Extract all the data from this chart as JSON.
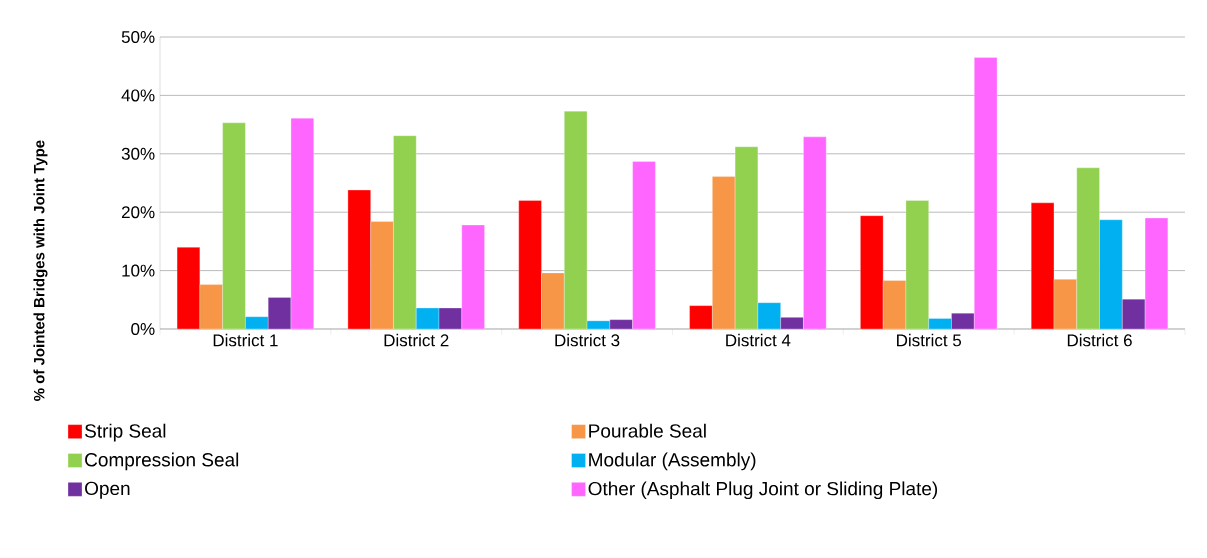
{
  "chart_data": {
    "type": "bar",
    "ylabel": "% of Jointed Bridges with Joint Type",
    "categories": [
      "District 1",
      "District 2",
      "District 3",
      "District 4",
      "District 5",
      "District 6"
    ],
    "series": [
      {
        "name": "Strip Seal",
        "color": "#ff0000",
        "values": [
          14.0,
          23.8,
          22.0,
          4.0,
          19.4,
          21.6
        ]
      },
      {
        "name": "Pourable Seal",
        "color": "#f79646",
        "values": [
          7.6,
          18.4,
          9.6,
          26.1,
          8.3,
          8.5
        ]
      },
      {
        "name": "Compression Seal",
        "color": "#92d050",
        "values": [
          35.3,
          33.1,
          37.3,
          31.2,
          22.0,
          27.6
        ]
      },
      {
        "name": "Modular (Assembly)",
        "color": "#00b0f0",
        "values": [
          2.1,
          3.6,
          1.4,
          4.5,
          1.8,
          18.7
        ]
      },
      {
        "name": "Open",
        "color": "#7030a0",
        "values": [
          5.4,
          3.6,
          1.6,
          2.0,
          2.7,
          5.1
        ]
      },
      {
        "name": "Other (Asphalt Plug Joint or Sliding Plate)",
        "color": "#ff66ff",
        "values": [
          36.1,
          17.8,
          28.7,
          32.9,
          46.5,
          19.0
        ]
      }
    ],
    "ylim": [
      0,
      50
    ],
    "yticks": [
      {
        "value": 0,
        "label": "0%"
      },
      {
        "value": 10,
        "label": "10%"
      },
      {
        "value": 20,
        "label": "20%"
      },
      {
        "value": 30,
        "label": "30%"
      },
      {
        "value": 40,
        "label": "40%"
      },
      {
        "value": 50,
        "label": "50%"
      }
    ],
    "grid": "y",
    "legend": "bottom"
  }
}
